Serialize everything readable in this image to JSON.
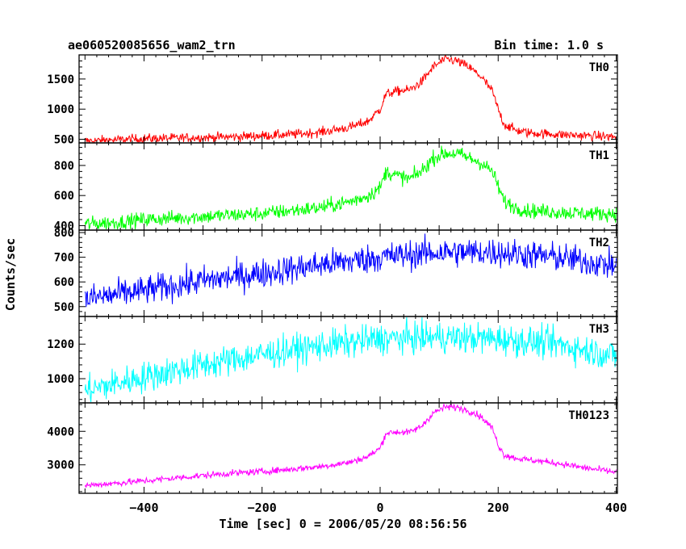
{
  "header": {
    "title": "ae060520085656_wam2_trn",
    "bin_time": "Bin time: 1.0 s"
  },
  "axes": {
    "xlabel": "Time [sec] 0 = 2006/05/20 08:56:56",
    "ylabel": "Counts/sec"
  },
  "chart_data": {
    "type": "line",
    "xlim": [
      -510,
      402
    ],
    "x_ticks": [
      -400,
      -200,
      0,
      200,
      400
    ],
    "x_tick_labels": [
      "−400",
      "−200",
      "0",
      "200",
      "400"
    ],
    "grid": false,
    "panels": [
      {
        "name": "TH0",
        "color": "#ff0000",
        "ylim": [
          440,
          1900
        ],
        "y_ticks": [
          500,
          1000,
          1500
        ],
        "y_tick_labels": [
          "500",
          "1000",
          "1500"
        ],
        "series": {
          "x": [
            -500,
            -450,
            -400,
            -350,
            -300,
            -250,
            -200,
            -150,
            -100,
            -50,
            -20,
            0,
            10,
            30,
            50,
            70,
            90,
            110,
            130,
            150,
            170,
            190,
            200,
            210,
            230,
            250,
            300,
            350,
            400
          ],
          "y": [
            470,
            490,
            510,
            520,
            530,
            540,
            560,
            580,
            620,
            700,
            800,
            1000,
            1250,
            1300,
            1320,
            1450,
            1700,
            1830,
            1800,
            1700,
            1550,
            1300,
            1000,
            750,
            650,
            610,
            580,
            560,
            540
          ],
          "noise": 40
        }
      },
      {
        "name": "TH1",
        "color": "#00ff00",
        "ylim": [
          370,
          950
        ],
        "y_ticks": [
          400,
          600,
          800
        ],
        "y_tick_labels": [
          "400",
          "600",
          "800"
        ],
        "series": {
          "x": [
            -500,
            -450,
            -400,
            -350,
            -300,
            -250,
            -200,
            -150,
            -100,
            -50,
            -20,
            0,
            10,
            30,
            50,
            70,
            90,
            110,
            130,
            150,
            170,
            190,
            200,
            210,
            230,
            250,
            300,
            350,
            400
          ],
          "y": [
            410,
            420,
            440,
            450,
            460,
            470,
            480,
            500,
            520,
            560,
            600,
            650,
            760,
            730,
            710,
            760,
            850,
            880,
            880,
            850,
            820,
            760,
            660,
            560,
            520,
            500,
            490,
            480,
            480
          ],
          "noise": 25
        }
      },
      {
        "name": "TH2",
        "color": "#0000ff",
        "ylim": [
          460,
          810
        ],
        "y_ticks": [
          500,
          600,
          700,
          800
        ],
        "y_tick_labels": [
          "500",
          "600",
          "700",
          "800"
        ],
        "series": {
          "x": [
            -500,
            -400,
            -300,
            -200,
            -100,
            0,
            100,
            200,
            300,
            400
          ],
          "y": [
            530,
            565,
            605,
            635,
            670,
            700,
            720,
            720,
            700,
            665
          ],
          "noise": 30
        }
      },
      {
        "name": "TH3",
        "color": "#00ffff",
        "ylim": [
          860,
          1360
        ],
        "y_ticks": [
          1000,
          1200
        ],
        "y_tick_labels": [
          "1000",
          "1200"
        ],
        "series": {
          "x": [
            -500,
            -400,
            -300,
            -200,
            -100,
            0,
            100,
            200,
            300,
            400
          ],
          "y": [
            930,
            1010,
            1080,
            1140,
            1190,
            1230,
            1240,
            1230,
            1200,
            1130
          ],
          "noise": 45
        }
      },
      {
        "name": "TH0123",
        "color": "#ff00ff",
        "ylim": [
          2150,
          4850
        ],
        "y_ticks": [
          3000,
          4000
        ],
        "y_tick_labels": [
          "3000",
          "4000"
        ],
        "series": {
          "x": [
            -500,
            -450,
            -400,
            -350,
            -300,
            -250,
            -200,
            -150,
            -100,
            -50,
            -20,
            0,
            10,
            30,
            50,
            70,
            90,
            110,
            130,
            150,
            170,
            190,
            200,
            210,
            230,
            250,
            300,
            350,
            400
          ],
          "y": [
            2380,
            2450,
            2520,
            2600,
            2680,
            2750,
            2800,
            2870,
            2950,
            3080,
            3250,
            3500,
            3950,
            3980,
            3970,
            4150,
            4550,
            4720,
            4720,
            4620,
            4450,
            4100,
            3600,
            3300,
            3200,
            3150,
            3050,
            2900,
            2780
          ],
          "noise": 50
        }
      }
    ]
  }
}
